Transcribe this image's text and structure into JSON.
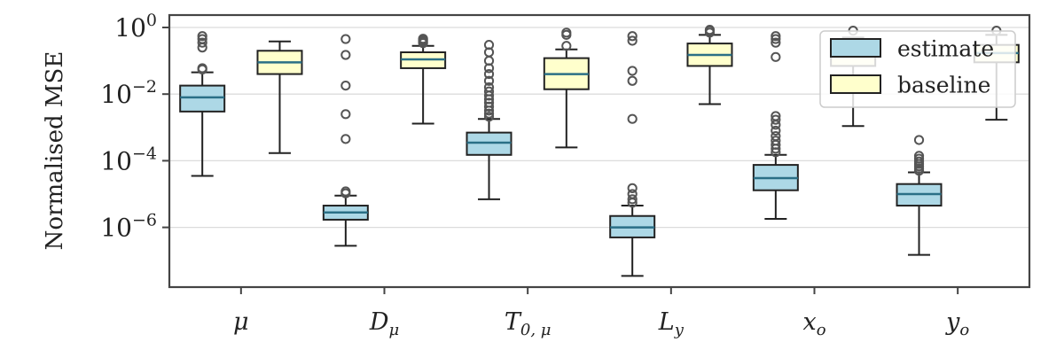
{
  "chart_data": {
    "type": "box",
    "title": "",
    "xlabel": "",
    "ylabel": "Normalised MSE",
    "yscale": "log",
    "ylim": [
      3e-08,
      2
    ],
    "yticks": [
      {
        "value": 1,
        "base": "10",
        "exp": "0"
      },
      {
        "value": 0.01,
        "base": "10",
        "exp": "−2"
      },
      {
        "value": 0.0001,
        "base": "10",
        "exp": "−4"
      },
      {
        "value": 1e-06,
        "base": "10",
        "exp": "−6"
      }
    ],
    "grid": "horizontal",
    "legend_position": "top-right",
    "categories": [
      {
        "main": "μ",
        "sub": ""
      },
      {
        "main": "D",
        "sub": "μ"
      },
      {
        "main": "T",
        "sub": "0, μ"
      },
      {
        "main": "L",
        "sub": "y"
      },
      {
        "main": "x",
        "sub": "o"
      },
      {
        "main": "y",
        "sub": "o"
      }
    ],
    "series": [
      {
        "name": "estimate",
        "color": "#add8e6",
        "boxes": [
          {
            "whislo": 3.5e-05,
            "q1": 0.003,
            "med": 0.008,
            "q3": 0.018,
            "whishi": 0.045,
            "fliers": [
              0.055,
              0.06,
              0.25,
              0.35,
              0.45,
              0.55
            ]
          },
          {
            "whislo": 2.8e-07,
            "q1": 1.7e-06,
            "med": 2.8e-06,
            "q3": 4.5e-06,
            "whishi": 9e-06,
            "fliers": [
              1.05e-05,
              1.2e-05,
              0.00045,
              0.0025,
              0.018,
              0.15,
              0.45
            ]
          },
          {
            "whislo": 7e-06,
            "q1": 0.00015,
            "med": 0.00035,
            "q3": 0.0007,
            "whishi": 0.0018,
            "fliers": [
              0.0021,
              0.0026,
              0.0032,
              0.0042,
              0.0055,
              0.007,
              0.009,
              0.012,
              0.016,
              0.025,
              0.04,
              0.06,
              0.1,
              0.18,
              0.3
            ]
          },
          {
            "whislo": 3.5e-08,
            "q1": 5e-07,
            "med": 1e-06,
            "q3": 2.2e-06,
            "whishi": 4.5e-06,
            "fliers": [
              5.5e-06,
              7e-06,
              1e-05,
              1.5e-05,
              0.0018,
              0.025,
              0.05,
              0.4,
              0.55
            ]
          },
          {
            "whislo": 1.8e-06,
            "q1": 1.3e-05,
            "med": 3e-05,
            "q3": 7.5e-05,
            "whishi": 0.00015,
            "fliers": [
              0.00018,
              0.00023,
              0.0003,
              0.0004,
              0.00055,
              0.0008,
              0.0012,
              0.0017,
              0.0022,
              0.13,
              0.35,
              0.45,
              0.55
            ]
          },
          {
            "whislo": 1.5e-07,
            "q1": 4.5e-06,
            "med": 1e-05,
            "q3": 2e-05,
            "whishi": 4.5e-05,
            "fliers": [
              5e-05,
              5.8e-05,
              6.8e-05,
              8e-05,
              9.5e-05,
              0.000115,
              0.00014,
              0.00042
            ]
          }
        ]
      },
      {
        "name": "baseline",
        "color": "#ffffcc",
        "boxes": [
          {
            "whislo": 0.00017,
            "q1": 0.04,
            "med": 0.09,
            "q3": 0.2,
            "whishi": 0.38,
            "fliers": []
          },
          {
            "whislo": 0.0013,
            "q1": 0.06,
            "med": 0.11,
            "q3": 0.18,
            "whishi": 0.28,
            "fliers": [
              0.34,
              0.38,
              0.42,
              0.46
            ]
          },
          {
            "whislo": 0.00025,
            "q1": 0.014,
            "med": 0.04,
            "q3": 0.12,
            "whishi": 0.22,
            "fliers": [
              0.28,
              0.6,
              0.7
            ]
          },
          {
            "whislo": 0.005,
            "q1": 0.07,
            "med": 0.15,
            "q3": 0.33,
            "whishi": 0.6,
            "fliers": [
              0.7,
              0.8,
              0.85
            ]
          },
          {
            "whislo": 0.0011,
            "q1": 0.07,
            "med": 0.14,
            "q3": 0.25,
            "whishi": 0.5,
            "fliers": [
              0.8
            ]
          },
          {
            "whislo": 0.0017,
            "q1": 0.09,
            "med": 0.17,
            "q3": 0.3,
            "whishi": 0.6,
            "fliers": [
              0.8
            ]
          }
        ]
      }
    ]
  }
}
